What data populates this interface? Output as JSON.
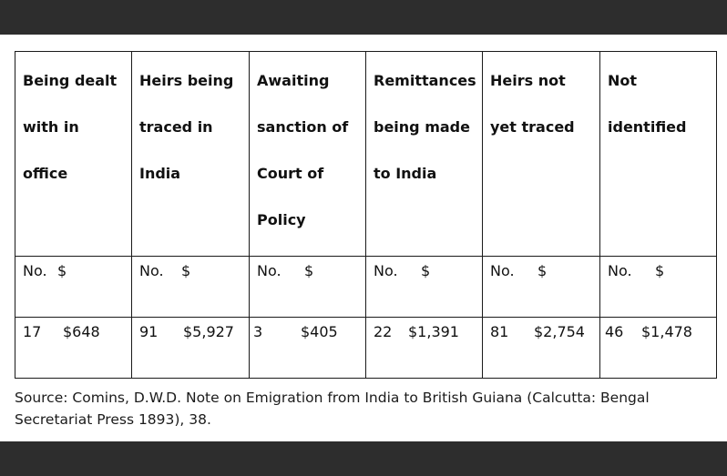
{
  "table": {
    "headers": [
      [
        "Being dealt",
        "with in",
        "office"
      ],
      [
        "Heirs being",
        "traced in",
        "India"
      ],
      [
        "Awaiting",
        "sanction of",
        "Court of",
        "Policy"
      ],
      [
        "Remittances",
        "being made",
        "to India"
      ],
      [
        "Heirs not",
        "yet traced"
      ],
      [
        "Not",
        "identified"
      ]
    ],
    "units": [
      {
        "count": "No.",
        "amount": "$"
      },
      {
        "count": "No.",
        "amount": "$"
      },
      {
        "count": "No.",
        "amount": "$"
      },
      {
        "count": "No.",
        "amount": "$"
      },
      {
        "count": "No.",
        "amount": "$"
      },
      {
        "count": "No.",
        "amount": "$"
      }
    ],
    "values": [
      {
        "count": "17",
        "amount": "$648"
      },
      {
        "count": "91",
        "amount": "$5,927"
      },
      {
        "count": "3",
        "amount": "$405"
      },
      {
        "count": "22",
        "amount": "$1,391"
      },
      {
        "count": "81",
        "amount": "$2,754"
      },
      {
        "count": "46",
        "amount": "$1,478"
      }
    ]
  },
  "source": "Source: Comins, D.W.D. Note on Emigration from India to British Guiana (Calcutta: Bengal Secretariat Press 1893), 38."
}
